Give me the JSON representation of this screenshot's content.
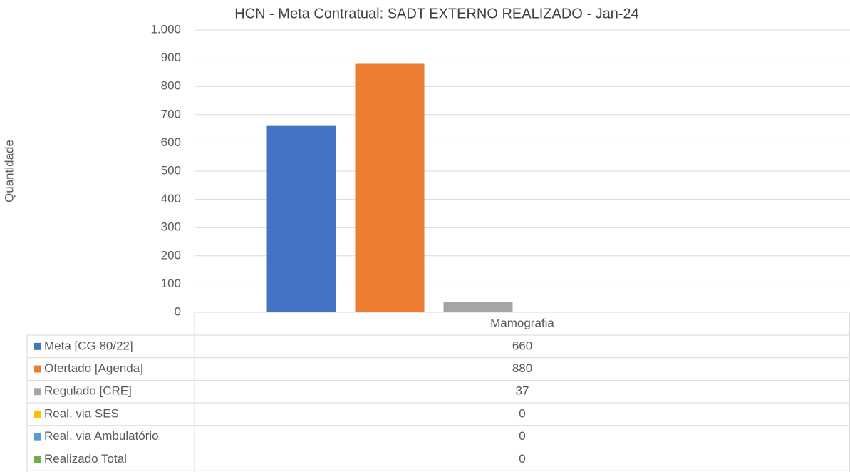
{
  "chart_data": {
    "type": "bar",
    "title": "HCN - Meta Contratual: SADT EXTERNO REALIZADO - Jan-24",
    "y_label": "Quantidade",
    "categories": [
      "Mamografia"
    ],
    "series": [
      {
        "name": "Meta [CG 80/22]",
        "color": "#4472c4",
        "values": [
          660
        ]
      },
      {
        "name": "Ofertado [Agenda]",
        "color": "#ed7d31",
        "values": [
          880
        ]
      },
      {
        "name": "Regulado [CRE]",
        "color": "#a5a5a5",
        "values": [
          37
        ]
      },
      {
        "name": "Real. via SES",
        "color": "#ffc000",
        "values": [
          0
        ]
      },
      {
        "name": "Real. via Ambulatório",
        "color": "#5b9bd5",
        "values": [
          0
        ]
      },
      {
        "name": "Realizado Total",
        "color": "#70ad47",
        "values": [
          0
        ]
      }
    ],
    "ylim": [
      0,
      1000
    ],
    "yticks": [
      0,
      100,
      200,
      300,
      400,
      500,
      600,
      700,
      800,
      900,
      {
        "value": 1000,
        "label": "1.000"
      }
    ],
    "grid": true
  }
}
